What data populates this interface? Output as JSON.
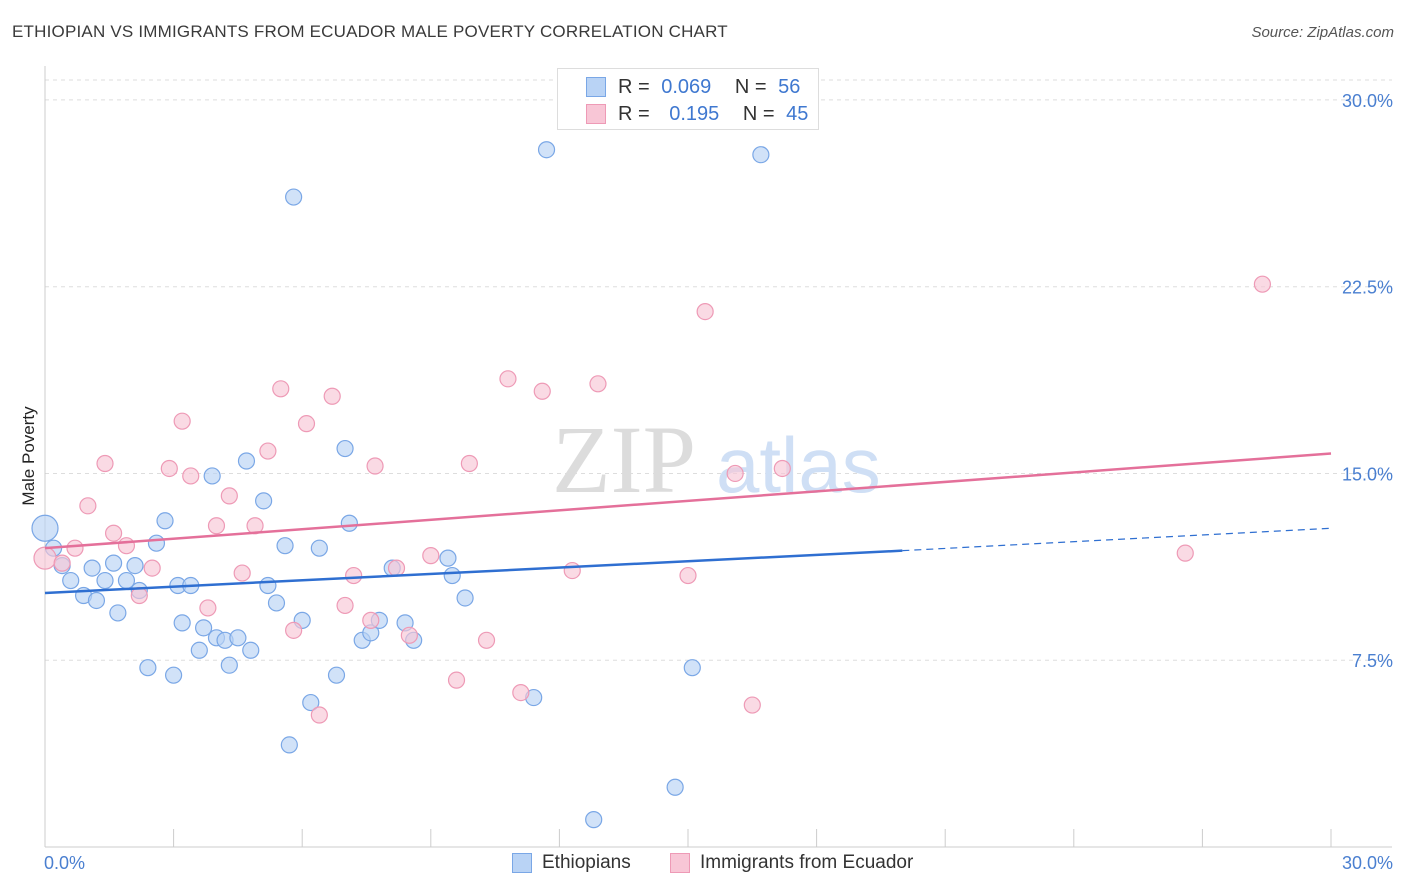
{
  "title": "ETHIOPIAN VS IMMIGRANTS FROM ECUADOR MALE POVERTY CORRELATION CHART",
  "source": "Source: ZipAtlas.com",
  "watermark": {
    "zip": "ZIP",
    "atlas": "atlas"
  },
  "legend_top": {
    "rows": [
      {
        "r_label": "R =",
        "r_value": "0.069",
        "n_label": "N =",
        "n_value": "56"
      },
      {
        "r_label": "R =",
        "r_value": "0.195",
        "n_label": "N =",
        "n_value": "45"
      }
    ]
  },
  "legend_bottom": {
    "items": [
      {
        "label": "Ethiopians"
      },
      {
        "label": "Immigrants from Ecuador"
      }
    ]
  },
  "colors": {
    "blue_fill": "#b9d3f5",
    "blue_stroke": "#7aa7e6",
    "blue_line": "#2f6fd1",
    "pink_fill": "#f8c6d6",
    "pink_stroke": "#ee9ab6",
    "pink_line": "#e4709a",
    "grid": "#dddddd",
    "tick_text": "#4a7fd0"
  },
  "chart_data": {
    "type": "scatter",
    "title": "ETHIOPIAN VS IMMIGRANTS FROM ECUADOR MALE POVERTY CORRELATION CHART",
    "xlabel": "",
    "ylabel": "Male Poverty",
    "xlim": [
      0,
      30
    ],
    "ylim": [
      0,
      30.8
    ],
    "x_tick_labels": [
      "0.0%",
      "30.0%"
    ],
    "y_ticks": [
      7.5,
      15.0,
      22.5,
      30.0
    ],
    "y_tick_labels": [
      "7.5%",
      "15.0%",
      "22.5%",
      "30.0%"
    ],
    "grid": true,
    "legend_position": "top-center",
    "series": [
      {
        "name": "Ethiopians",
        "r": 0.069,
        "n": 56,
        "trend": {
          "x_solid": [
            0,
            20
          ],
          "y_solid": [
            10.2,
            11.9
          ],
          "x_dashed": [
            20,
            30
          ],
          "y_dashed": [
            11.9,
            12.8
          ]
        },
        "points": [
          [
            0.0,
            12.8
          ],
          [
            0.2,
            12.0
          ],
          [
            0.4,
            11.3
          ],
          [
            0.6,
            10.7
          ],
          [
            0.9,
            10.1
          ],
          [
            1.1,
            11.2
          ],
          [
            1.2,
            9.9
          ],
          [
            1.4,
            10.7
          ],
          [
            1.6,
            11.4
          ],
          [
            1.7,
            9.4
          ],
          [
            1.9,
            10.7
          ],
          [
            2.1,
            11.3
          ],
          [
            2.2,
            10.3
          ],
          [
            2.4,
            7.2
          ],
          [
            2.6,
            12.2
          ],
          [
            2.8,
            13.1
          ],
          [
            3.0,
            6.9
          ],
          [
            3.1,
            10.5
          ],
          [
            3.2,
            9.0
          ],
          [
            3.4,
            10.5
          ],
          [
            3.6,
            7.9
          ],
          [
            3.7,
            8.8
          ],
          [
            3.9,
            14.9
          ],
          [
            4.0,
            8.4
          ],
          [
            4.2,
            8.3
          ],
          [
            4.3,
            7.3
          ],
          [
            4.5,
            8.4
          ],
          [
            4.7,
            15.5
          ],
          [
            4.8,
            7.9
          ],
          [
            5.1,
            13.9
          ],
          [
            5.2,
            10.5
          ],
          [
            5.4,
            9.8
          ],
          [
            5.6,
            12.1
          ],
          [
            5.7,
            4.1
          ],
          [
            5.8,
            26.1
          ],
          [
            6.0,
            9.1
          ],
          [
            6.2,
            5.8
          ],
          [
            6.4,
            12.0
          ],
          [
            6.8,
            6.9
          ],
          [
            7.0,
            16.0
          ],
          [
            7.1,
            13.0
          ],
          [
            7.4,
            8.3
          ],
          [
            7.6,
            8.6
          ],
          [
            7.8,
            9.1
          ],
          [
            8.1,
            11.2
          ],
          [
            8.4,
            9.0
          ],
          [
            8.6,
            8.3
          ],
          [
            9.4,
            11.6
          ],
          [
            9.5,
            10.9
          ],
          [
            9.8,
            10.0
          ],
          [
            11.4,
            6.0
          ],
          [
            11.7,
            28.0
          ],
          [
            12.8,
            1.1
          ],
          [
            14.7,
            2.4
          ],
          [
            15.1,
            7.2
          ],
          [
            16.7,
            27.8
          ]
        ]
      },
      {
        "name": "Immigrants from Ecuador",
        "r": 0.195,
        "n": 45,
        "trend": {
          "x_solid": [
            0,
            30
          ],
          "y_solid": [
            12.0,
            15.8
          ]
        },
        "points": [
          [
            0.0,
            11.6
          ],
          [
            0.4,
            11.4
          ],
          [
            0.7,
            12.0
          ],
          [
            1.0,
            13.7
          ],
          [
            1.4,
            15.4
          ],
          [
            1.6,
            12.6
          ],
          [
            1.9,
            12.1
          ],
          [
            2.2,
            10.1
          ],
          [
            2.5,
            11.2
          ],
          [
            2.9,
            15.2
          ],
          [
            3.2,
            17.1
          ],
          [
            3.4,
            14.9
          ],
          [
            3.8,
            9.6
          ],
          [
            4.0,
            12.9
          ],
          [
            4.3,
            14.1
          ],
          [
            4.6,
            11.0
          ],
          [
            4.9,
            12.9
          ],
          [
            5.2,
            15.9
          ],
          [
            5.5,
            18.4
          ],
          [
            5.8,
            8.7
          ],
          [
            6.1,
            17.0
          ],
          [
            6.4,
            5.3
          ],
          [
            6.7,
            18.1
          ],
          [
            7.0,
            9.7
          ],
          [
            7.2,
            10.9
          ],
          [
            7.6,
            9.1
          ],
          [
            7.7,
            15.3
          ],
          [
            8.2,
            11.2
          ],
          [
            8.5,
            8.5
          ],
          [
            9.0,
            11.7
          ],
          [
            9.6,
            6.7
          ],
          [
            9.9,
            15.4
          ],
          [
            10.3,
            8.3
          ],
          [
            10.8,
            18.8
          ],
          [
            11.1,
            6.2
          ],
          [
            11.6,
            18.3
          ],
          [
            12.3,
            11.1
          ],
          [
            12.9,
            18.6
          ],
          [
            15.0,
            10.9
          ],
          [
            15.4,
            21.5
          ],
          [
            16.1,
            15.0
          ],
          [
            16.5,
            5.7
          ],
          [
            17.2,
            15.2
          ],
          [
            26.6,
            11.8
          ],
          [
            28.4,
            22.6
          ]
        ]
      }
    ]
  }
}
